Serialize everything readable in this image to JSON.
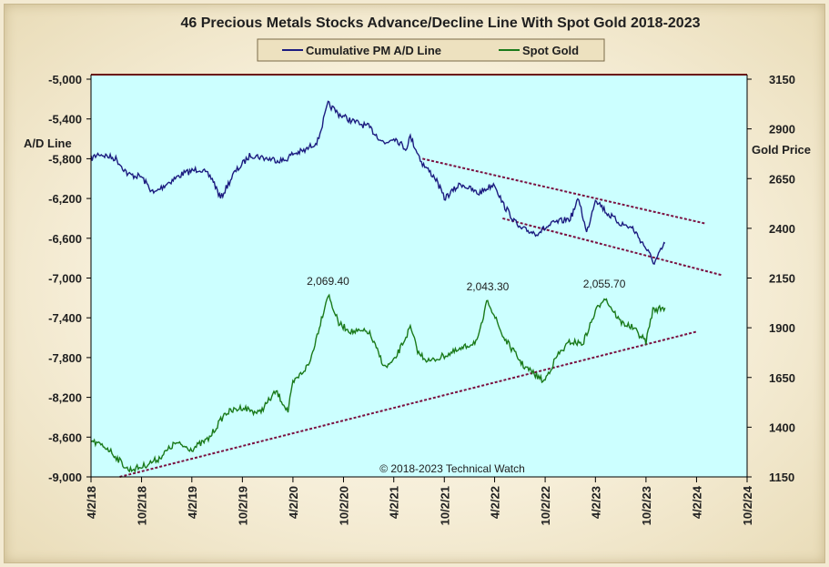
{
  "chart_data": {
    "type": "line",
    "title": "46 Precious Metals Stocks Advance/Decline Line With Spot Gold 2018-2023",
    "copyright": "© 2018-2023 Technical Watch",
    "left_axis": {
      "label": "A/D Line",
      "range": [
        -9000,
        -5000
      ],
      "ticks": [
        "-5,000",
        "-5,400",
        "-5,800",
        "-6,200",
        "-6,600",
        "-7,000",
        "-7,400",
        "-7,800",
        "-8,200",
        "-8,600",
        "-9,000"
      ]
    },
    "right_axis": {
      "label": "Gold Price",
      "range": [
        1150,
        3150
      ],
      "ticks": [
        "3150",
        "2900",
        "2650",
        "2400",
        "2150",
        "1900",
        "1650",
        "1400",
        "1150"
      ]
    },
    "x_axis": {
      "range": [
        "4/2/2018",
        "10/2/2024"
      ],
      "ticks": [
        "4/2/18",
        "10/2/18",
        "4/2/19",
        "10/2/19",
        "4/2/20",
        "10/2/20",
        "4/2/21",
        "10/2/21",
        "4/2/22",
        "10/2/22",
        "4/2/23",
        "10/2/23",
        "4/2/24",
        "10/2/24"
      ]
    },
    "series": [
      {
        "name": "Cumulative PM A/D Line",
        "axis": "left",
        "color": "#1c1c80",
        "points": [
          [
            "2018-04-02",
            -5800
          ],
          [
            "2018-05-01",
            -5750
          ],
          [
            "2018-07-01",
            -5800
          ],
          [
            "2018-08-15",
            -5960
          ],
          [
            "2018-10-01",
            -5980
          ],
          [
            "2018-11-15",
            -6150
          ],
          [
            "2019-01-01",
            -6050
          ],
          [
            "2019-03-01",
            -5950
          ],
          [
            "2019-05-01",
            -5900
          ],
          [
            "2019-06-15",
            -6000
          ],
          [
            "2019-07-15",
            -6200
          ],
          [
            "2019-09-01",
            -5950
          ],
          [
            "2019-11-01",
            -5760
          ],
          [
            "2020-01-01",
            -5800
          ],
          [
            "2020-03-01",
            -5820
          ],
          [
            "2020-04-02",
            -5750
          ],
          [
            "2020-05-15",
            -5720
          ],
          [
            "2020-07-01",
            -5620
          ],
          [
            "2020-08-07",
            -5250
          ],
          [
            "2020-09-15",
            -5350
          ],
          [
            "2020-11-01",
            -5420
          ],
          [
            "2021-01-01",
            -5480
          ],
          [
            "2021-03-01",
            -5650
          ],
          [
            "2021-04-02",
            -5580
          ],
          [
            "2021-05-15",
            -5700
          ],
          [
            "2021-06-01",
            -5580
          ],
          [
            "2021-07-15",
            -5850
          ],
          [
            "2021-09-01",
            -6000
          ],
          [
            "2021-10-02",
            -6200
          ],
          [
            "2021-12-01",
            -6050
          ],
          [
            "2022-02-01",
            -6150
          ],
          [
            "2022-04-02",
            -6050
          ],
          [
            "2022-05-01",
            -6250
          ],
          [
            "2022-07-01",
            -6500
          ],
          [
            "2022-09-01",
            -6550
          ],
          [
            "2022-11-01",
            -6450
          ],
          [
            "2023-01-01",
            -6400
          ],
          [
            "2023-02-01",
            -6200
          ],
          [
            "2023-03-01",
            -6550
          ],
          [
            "2023-04-02",
            -6200
          ],
          [
            "2023-05-15",
            -6350
          ],
          [
            "2023-07-01",
            -6450
          ],
          [
            "2023-08-15",
            -6500
          ],
          [
            "2023-10-02",
            -6700
          ],
          [
            "2023-11-01",
            -6850
          ],
          [
            "2023-12-10",
            -6650
          ]
        ]
      },
      {
        "name": "Spot Gold",
        "axis": "right",
        "color": "#1a7a1a",
        "points": [
          [
            "2018-04-02",
            1330
          ],
          [
            "2018-06-01",
            1295
          ],
          [
            "2018-08-15",
            1185
          ],
          [
            "2018-10-02",
            1200
          ],
          [
            "2018-12-01",
            1240
          ],
          [
            "2019-02-01",
            1320
          ],
          [
            "2019-04-02",
            1290
          ],
          [
            "2019-06-01",
            1340
          ],
          [
            "2019-08-01",
            1470
          ],
          [
            "2019-10-02",
            1500
          ],
          [
            "2019-12-01",
            1470
          ],
          [
            "2020-02-01",
            1580
          ],
          [
            "2020-03-15",
            1480
          ],
          [
            "2020-04-02",
            1620
          ],
          [
            "2020-06-01",
            1720
          ],
          [
            "2020-08-07",
            2069.4
          ],
          [
            "2020-09-15",
            1920
          ],
          [
            "2020-11-01",
            1880
          ],
          [
            "2021-01-01",
            1880
          ],
          [
            "2021-03-01",
            1700
          ],
          [
            "2021-04-02",
            1730
          ],
          [
            "2021-06-01",
            1900
          ],
          [
            "2021-07-01",
            1770
          ],
          [
            "2021-08-10",
            1730
          ],
          [
            "2021-10-02",
            1760
          ],
          [
            "2021-12-01",
            1790
          ],
          [
            "2022-02-01",
            1840
          ],
          [
            "2022-03-08",
            2043.3
          ],
          [
            "2022-05-01",
            1860
          ],
          [
            "2022-07-15",
            1710
          ],
          [
            "2022-09-28",
            1630
          ],
          [
            "2022-11-15",
            1760
          ],
          [
            "2023-01-01",
            1830
          ],
          [
            "2023-02-15",
            1820
          ],
          [
            "2023-04-02",
            1980
          ],
          [
            "2023-05-04",
            2055.7
          ],
          [
            "2023-07-01",
            1930
          ],
          [
            "2023-08-15",
            1900
          ],
          [
            "2023-10-02",
            1830
          ],
          [
            "2023-10-27",
            1990
          ],
          [
            "2023-12-10",
            2000
          ]
        ]
      }
    ],
    "data_labels": [
      {
        "text": "2,069.40",
        "x": "2020-08-07",
        "value": 2069.4,
        "axis": "right"
      },
      {
        "text": "2,043.30",
        "x": "2022-03-08",
        "value": 2043.3,
        "axis": "right"
      },
      {
        "text": "2,055.70",
        "x": "2023-05-04",
        "value": 2055.7,
        "axis": "right"
      }
    ],
    "trendlines": [
      {
        "axis": "left",
        "from": [
          "2021-07-15",
          -5800
        ],
        "to": [
          "2024-05-01",
          -6450
        ]
      },
      {
        "axis": "left",
        "from": [
          "2022-05-01",
          -6400
        ],
        "to": [
          "2024-07-01",
          -6970
        ]
      },
      {
        "axis": "right",
        "from": [
          "2018-07-15",
          1150
        ],
        "to": [
          "2024-04-01",
          1880
        ]
      }
    ]
  }
}
